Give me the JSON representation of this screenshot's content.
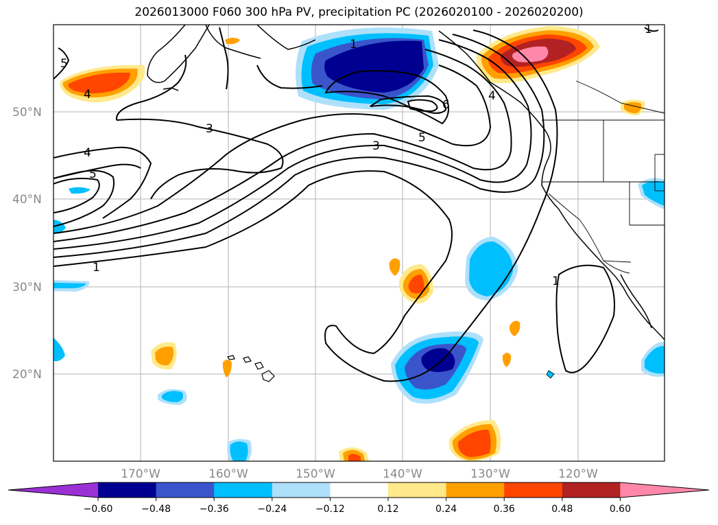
{
  "title": "2026013000 F060 300 hPa PV, precipitation PC (2026020100 - 2026020200)",
  "lat_labels": [
    "50°N",
    "40°N",
    "30°N",
    "20°N"
  ],
  "lon_labels": [
    "170°W",
    "160°W",
    "150°W",
    "140°W",
    "130°W",
    "120°W"
  ],
  "colorbar": {
    "ticks": [
      "−0.60",
      "−0.48",
      "−0.36",
      "−0.24",
      "−0.12",
      "0.12",
      "0.24",
      "0.36",
      "0.48",
      "0.60"
    ],
    "colors": [
      "#9b30d4",
      "#000090",
      "#3a55cc",
      "#00bfff",
      "#aee0fa",
      "#ffffff",
      "#ffe98a",
      "#ffa000",
      "#ff4500",
      "#b22222",
      "#ff88aa"
    ]
  },
  "contour_labels": [
    "5",
    "4",
    "3",
    "4",
    "5",
    "1",
    "1",
    "6",
    "3",
    "5",
    "4",
    "1",
    "1"
  ]
}
